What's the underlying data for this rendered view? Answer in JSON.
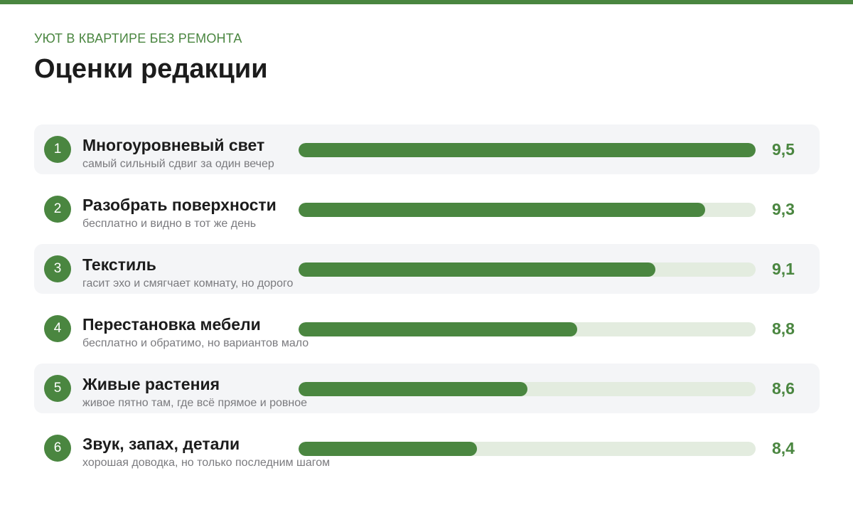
{
  "header": {
    "kicker": "УЮТ В КВАРТИРЕ БЕЗ РЕМОНТА",
    "title": "Оценки редакции"
  },
  "colors": {
    "accent": "#4a8640",
    "track": "#e3ecdf",
    "row_shade": "#f4f5f7"
  },
  "chart_data": {
    "type": "bar",
    "title": "Оценки редакции",
    "items": [
      {
        "rank": "1",
        "label": "Многоуровневый свет",
        "note": "самый сильный сдвиг за один вечер",
        "value": 9.5,
        "value_label": "9,5",
        "fill_fraction": 1.0
      },
      {
        "rank": "2",
        "label": "Разобрать поверхности",
        "note": "бесплатно и видно в тот же день",
        "value": 9.3,
        "value_label": "9,3",
        "fill_fraction": 0.89
      },
      {
        "rank": "3",
        "label": "Текстиль",
        "note": "гасит эхо и смягчает комнату, но дорого",
        "value": 9.1,
        "value_label": "9,1",
        "fill_fraction": 0.78
      },
      {
        "rank": "4",
        "label": "Перестановка мебели",
        "note": "бесплатно и обратимо, но вариантов мало",
        "value": 8.8,
        "value_label": "8,8",
        "fill_fraction": 0.61
      },
      {
        "rank": "5",
        "label": "Живые растения",
        "note": "живое пятно там, где всё прямое и ровное",
        "value": 8.6,
        "value_label": "8,6",
        "fill_fraction": 0.5
      },
      {
        "rank": "6",
        "label": "Звук, запах, детали",
        "note": "хорошая доводка, но только последним шагом",
        "value": 8.4,
        "value_label": "8,4",
        "fill_fraction": 0.39
      }
    ]
  }
}
